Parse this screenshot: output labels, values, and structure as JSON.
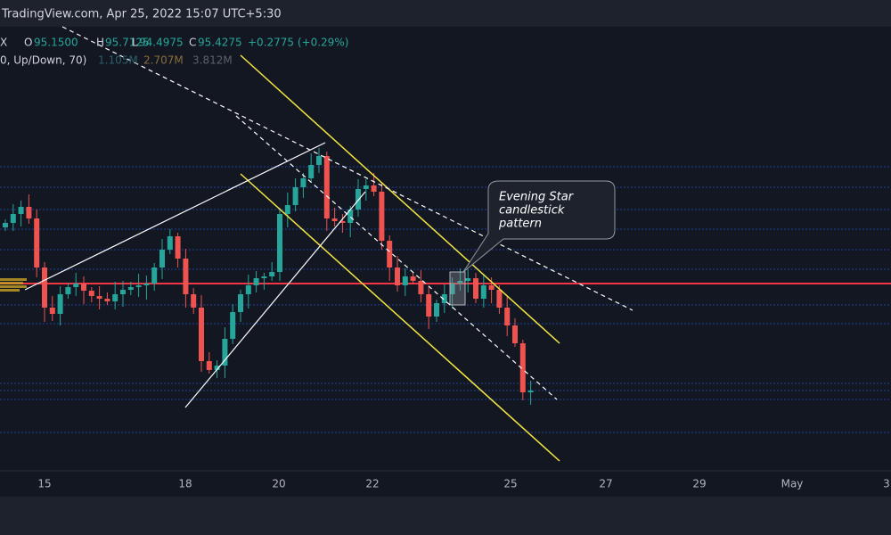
{
  "header": {
    "title": "TradingView.com, Apr 25, 2022 15:07 UTC+5:30"
  },
  "legend": {
    "symbol": "X",
    "open_label": "O",
    "open": "95.1500",
    "high_label": "H",
    "high": "95.7125",
    "low_label": "L",
    "low": "94.4975",
    "close_label": "C",
    "close": "95.4275",
    "change": "+0.2775 (+0.29%)"
  },
  "volume_legend": {
    "label": "0, Up/Down, 70)",
    "values": [
      "1.105M",
      "2.707M",
      "3.812M"
    ]
  },
  "annotation": {
    "lines": [
      "Evening Star",
      "candlestick",
      "pattern"
    ]
  },
  "x_axis": {
    "labels": [
      "15",
      "18",
      "20",
      "22",
      "25",
      "27",
      "29",
      "May",
      "3"
    ]
  }
}
